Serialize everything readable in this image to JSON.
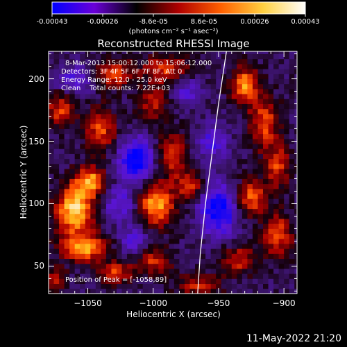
{
  "colorbar": {
    "ticks": [
      "-0.00043",
      "-0.00026",
      "-8.6e-05",
      "8.6e-05",
      "0.00026",
      "0.00043"
    ],
    "unit": "(photons cm⁻² s⁻¹ asec⁻²)",
    "range": [
      -0.00043,
      0.00043
    ],
    "colors": [
      "#0000ff",
      "#6a00d8",
      "#000000",
      "#b00000",
      "#ff6000",
      "#ffd040",
      "#ffffff"
    ]
  },
  "chart_data": {
    "type": "heatmap",
    "title": "Reconstructed RHESSI Image",
    "xlabel": "Heliocentric X (arcsec)",
    "ylabel": "Heliocentric Y (arcsec)",
    "xlim": [
      -1080,
      -890
    ],
    "ylim": [
      28,
      222
    ],
    "xticks": [
      -1050,
      -1000,
      -950,
      -900
    ],
    "yticks": [
      50,
      100,
      150,
      200
    ],
    "xtick_labels": [
      "−1050",
      "−1000",
      "−950",
      "−900"
    ],
    "ytick_labels": [
      "50",
      "100",
      "150",
      "200"
    ],
    "info_lines": [
      "8-Mar-2013 15:00:12.000 to 15:06:12.000",
      "Detectors: 3F 4F 5F 6F 7F 8F, Att 0",
      "Energy Range: 12.0 - 25.0 keV",
      "Clean    Total counts: 7.22E+03"
    ],
    "peak_text": "Position of Peak = [-1058,89]",
    "peak": [
      -1058,
      89
    ],
    "limb": [
      [
        -944,
        222
      ],
      [
        -950,
        180
      ],
      [
        -955,
        140
      ],
      [
        -960,
        100
      ],
      [
        -964,
        60
      ],
      [
        -966,
        28
      ]
    ],
    "blobs": [
      {
        "x": -1060,
        "y": 95,
        "sx": 10,
        "sy": 14,
        "a": 1.0
      },
      {
        "x": -1048,
        "y": 118,
        "sx": 8,
        "sy": 8,
        "a": 0.8
      },
      {
        "x": -1052,
        "y": 65,
        "sx": 12,
        "sy": 7,
        "a": 0.85
      },
      {
        "x": -1040,
        "y": 160,
        "sx": 8,
        "sy": 12,
        "a": 0.6
      },
      {
        "x": -1070,
        "y": 175,
        "sx": 8,
        "sy": 10,
        "a": 0.55
      },
      {
        "x": -1030,
        "y": 205,
        "sx": 10,
        "sy": 8,
        "a": 0.6
      },
      {
        "x": -990,
        "y": 208,
        "sx": 12,
        "sy": 8,
        "a": 0.55
      },
      {
        "x": -1000,
        "y": 180,
        "sx": 8,
        "sy": 10,
        "a": 0.45
      },
      {
        "x": -985,
        "y": 140,
        "sx": 8,
        "sy": 12,
        "a": 0.55
      },
      {
        "x": -998,
        "y": 100,
        "sx": 10,
        "sy": 12,
        "a": 0.85
      },
      {
        "x": -972,
        "y": 115,
        "sx": 7,
        "sy": 8,
        "a": 0.55
      },
      {
        "x": -1000,
        "y": 55,
        "sx": 10,
        "sy": 8,
        "a": 0.5
      },
      {
        "x": -1030,
        "y": 45,
        "sx": 10,
        "sy": 6,
        "a": 0.55
      },
      {
        "x": -930,
        "y": 195,
        "sx": 7,
        "sy": 10,
        "a": 0.8
      },
      {
        "x": -915,
        "y": 165,
        "sx": 8,
        "sy": 14,
        "a": 0.6
      },
      {
        "x": -905,
        "y": 130,
        "sx": 7,
        "sy": 12,
        "a": 0.55
      },
      {
        "x": -925,
        "y": 105,
        "sx": 8,
        "sy": 10,
        "a": 0.65
      },
      {
        "x": -905,
        "y": 75,
        "sx": 8,
        "sy": 12,
        "a": 0.6
      },
      {
        "x": -935,
        "y": 55,
        "sx": 10,
        "sy": 8,
        "a": 0.5
      },
      {
        "x": -965,
        "y": 35,
        "sx": 12,
        "sy": 6,
        "a": 0.45
      },
      {
        "x": -1075,
        "y": 40,
        "sx": 6,
        "sy": 8,
        "a": 0.4
      },
      {
        "x": -1013,
        "y": 135,
        "sx": 9,
        "sy": 12,
        "a": -0.9
      },
      {
        "x": -1025,
        "y": 100,
        "sx": 10,
        "sy": 10,
        "a": -0.45
      },
      {
        "x": -950,
        "y": 95,
        "sx": 10,
        "sy": 14,
        "a": -0.85
      },
      {
        "x": -955,
        "y": 150,
        "sx": 8,
        "sy": 10,
        "a": -0.5
      },
      {
        "x": -1060,
        "y": 200,
        "sx": 10,
        "sy": 8,
        "a": -0.45
      },
      {
        "x": -975,
        "y": 190,
        "sx": 8,
        "sy": 8,
        "a": -0.4
      },
      {
        "x": -1015,
        "y": 70,
        "sx": 8,
        "sy": 8,
        "a": -0.45
      }
    ]
  },
  "footer": {
    "timestamp": "11-May-2022 21:20"
  }
}
